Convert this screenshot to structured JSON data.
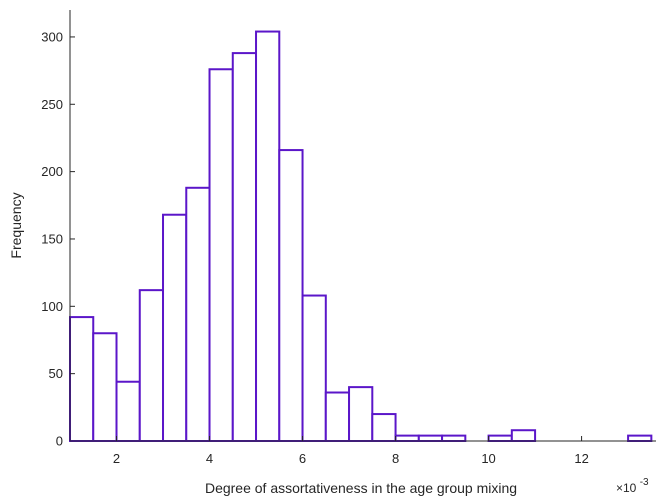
{
  "chart_data": {
    "type": "bar",
    "xlabel": "Degree of assortativeness in the age group mixing",
    "ylabel": "Frequency",
    "x_exponent_label": "×10",
    "x_exponent_power": "-3",
    "xlim": [
      1.0,
      13.6
    ],
    "ylim": [
      0,
      320
    ],
    "xticks": [
      2,
      4,
      6,
      8,
      10,
      12
    ],
    "yticks": [
      0,
      50,
      100,
      150,
      200,
      250,
      300
    ],
    "bin_width": 0.5,
    "bins": [
      {
        "x0": 1.0,
        "value": 92
      },
      {
        "x0": 1.5,
        "value": 80
      },
      {
        "x0": 2.0,
        "value": 44
      },
      {
        "x0": 2.5,
        "value": 112
      },
      {
        "x0": 3.0,
        "value": 168
      },
      {
        "x0": 3.5,
        "value": 188
      },
      {
        "x0": 4.0,
        "value": 276
      },
      {
        "x0": 4.5,
        "value": 288
      },
      {
        "x0": 5.0,
        "value": 304
      },
      {
        "x0": 5.5,
        "value": 216
      },
      {
        "x0": 6.0,
        "value": 108
      },
      {
        "x0": 6.5,
        "value": 36
      },
      {
        "x0": 7.0,
        "value": 40
      },
      {
        "x0": 7.5,
        "value": 20
      },
      {
        "x0": 8.0,
        "value": 4
      },
      {
        "x0": 8.5,
        "value": 4
      },
      {
        "x0": 9.0,
        "value": 4
      },
      {
        "x0": 9.5,
        "value": 0
      },
      {
        "x0": 10.0,
        "value": 4
      },
      {
        "x0": 10.5,
        "value": 8
      },
      {
        "x0": 11.0,
        "value": 0
      },
      {
        "x0": 11.5,
        "value": 0
      },
      {
        "x0": 12.0,
        "value": 0
      },
      {
        "x0": 12.5,
        "value": 0
      },
      {
        "x0": 13.0,
        "value": 4
      }
    ],
    "bar_edge_color": "#5b16c9",
    "bar_fill_color": "#ffffff",
    "axis_color": "#262626",
    "grid": false
  }
}
